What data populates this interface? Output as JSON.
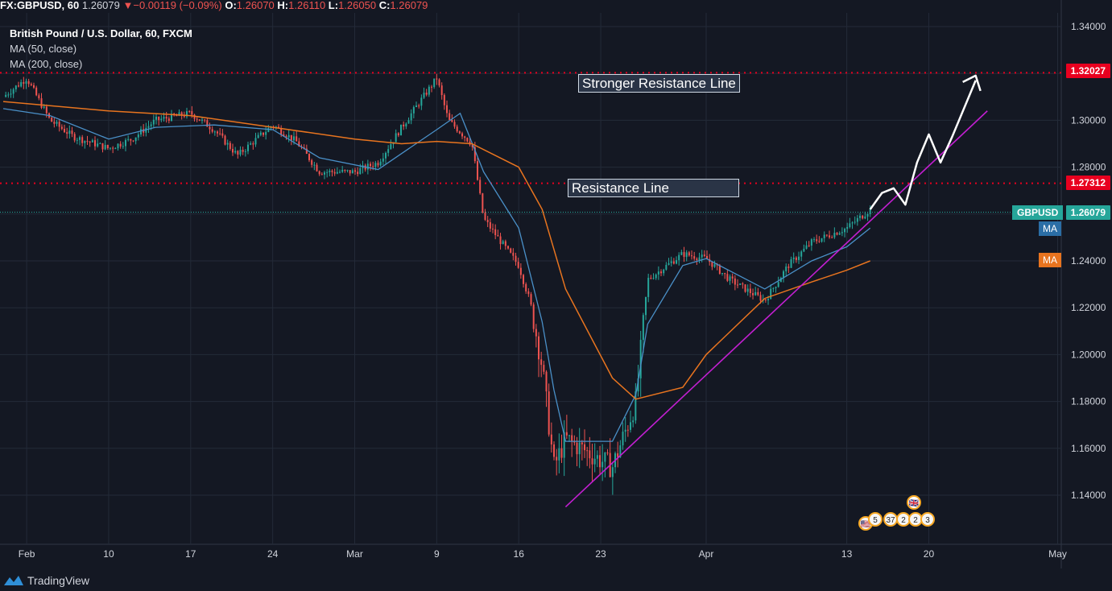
{
  "header": {
    "symbol": "FX:GBPUSD, 60",
    "last": "1.26079",
    "change_arrow": "▼",
    "change": "−0.00119 (−0.09%)",
    "o_label": "O:",
    "o_value": "1.26070",
    "h_label": "H:",
    "h_value": "1.26110",
    "l_label": "L:",
    "l_value": "1.26050",
    "c_label": "C:",
    "c_value": "1.26079"
  },
  "legend": {
    "title": "British Pound / U.S. Dollar, 60, FXCM",
    "ma1": "MA (50, close)",
    "ma2": "MA (200, close)"
  },
  "annotations": {
    "stronger_resistance": "Stronger Resistance Line",
    "resistance": "Resistance Line"
  },
  "price_tags": {
    "stronger_resistance_price": "1.32027",
    "resistance_price": "1.27312",
    "current_symbol": "GBPUSD",
    "current_price": "1.26079",
    "ma_fast_tag": "MA",
    "ma_slow_tag": "MA"
  },
  "events": {
    "e1": "5",
    "e2": "37",
    "e3": "2",
    "e4": "2",
    "e5": "3"
  },
  "brand": "TradingView",
  "colors": {
    "background": "#141823",
    "grid": "#232a38",
    "up": "#26a69a",
    "down": "#ef5350",
    "ma_fast": "#4a90c8",
    "ma_slow": "#e8741f",
    "trendline": "#c21fd1",
    "resistance": "#e8001f",
    "current_line": "#26a69a"
  },
  "chart_data": {
    "type": "line",
    "title": "British Pound / U.S. Dollar, 60, FXCM",
    "xlabel": "",
    "ylabel": "",
    "x_ticks": [
      "Feb",
      "10",
      "17",
      "24",
      "Mar",
      "9",
      "16",
      "23",
      "Apr",
      "13",
      "20",
      "May"
    ],
    "x_tick_dates": [
      "2020-02-03",
      "2020-02-10",
      "2020-02-17",
      "2020-02-24",
      "2020-03-02",
      "2020-03-09",
      "2020-03-16",
      "2020-03-23",
      "2020-04-01",
      "2020-04-13",
      "2020-04-20",
      "2020-05-01"
    ],
    "y_ticks": [
      "1.34000",
      "1.32000",
      "1.30000",
      "1.28000",
      "1.26000",
      "1.24000",
      "1.22000",
      "1.20000",
      "1.18000",
      "1.16000",
      "1.14000"
    ],
    "ylim": [
      1.128,
      1.342
    ],
    "xlim": [
      "2020-02-01",
      "2020-05-01"
    ],
    "grid": true,
    "legend_position": "top-left",
    "series": [
      {
        "name": "",
        "kind": "price",
        "x": [
          "2020-02-01",
          "2020-02-03",
          "2020-02-05",
          "2020-02-07",
          "2020-02-10",
          "2020-02-12",
          "2020-02-14",
          "2020-02-17",
          "2020-02-19",
          "2020-02-21",
          "2020-02-24",
          "2020-02-26",
          "2020-02-28",
          "2020-03-02",
          "2020-03-04",
          "2020-03-06",
          "2020-03-09",
          "2020-03-10",
          "2020-03-12",
          "2020-03-13",
          "2020-03-16",
          "2020-03-17",
          "2020-03-18",
          "2020-03-19",
          "2020-03-20",
          "2020-03-22",
          "2020-03-24",
          "2020-03-26",
          "2020-03-27",
          "2020-03-30",
          "2020-04-01",
          "2020-04-03",
          "2020-04-06",
          "2020-04-08",
          "2020-04-10",
          "2020-04-13",
          "2020-04-15"
        ],
        "y": [
          1.31,
          1.318,
          1.3,
          1.293,
          1.288,
          1.292,
          1.3,
          1.303,
          1.296,
          1.285,
          1.298,
          1.291,
          1.278,
          1.278,
          1.282,
          1.297,
          1.318,
          1.3,
          1.29,
          1.258,
          1.238,
          1.222,
          1.195,
          1.152,
          1.164,
          1.158,
          1.152,
          1.18,
          1.232,
          1.243,
          1.241,
          1.232,
          1.223,
          1.238,
          1.248,
          1.254,
          1.262
        ]
      },
      {
        "name": "MA (50, close)",
        "kind": "ma",
        "x": [
          "2020-02-01",
          "2020-02-05",
          "2020-02-10",
          "2020-02-14",
          "2020-02-19",
          "2020-02-24",
          "2020-02-28",
          "2020-03-04",
          "2020-03-09",
          "2020-03-11",
          "2020-03-13",
          "2020-03-16",
          "2020-03-18",
          "2020-03-19",
          "2020-03-20",
          "2020-03-24",
          "2020-03-26",
          "2020-03-27",
          "2020-03-30",
          "2020-04-01",
          "2020-04-06",
          "2020-04-10",
          "2020-04-13",
          "2020-04-15"
        ],
        "y": [
          1.305,
          1.302,
          1.292,
          1.297,
          1.298,
          1.296,
          1.284,
          1.279,
          1.296,
          1.303,
          1.278,
          1.254,
          1.214,
          1.185,
          1.163,
          1.163,
          1.183,
          1.213,
          1.238,
          1.241,
          1.228,
          1.24,
          1.246,
          1.254
        ]
      },
      {
        "name": "MA (200, close)",
        "kind": "ma",
        "x": [
          "2020-02-01",
          "2020-02-10",
          "2020-02-17",
          "2020-02-24",
          "2020-03-02",
          "2020-03-06",
          "2020-03-09",
          "2020-03-12",
          "2020-03-16",
          "2020-03-18",
          "2020-03-20",
          "2020-03-24",
          "2020-03-26",
          "2020-03-30",
          "2020-04-01",
          "2020-04-06",
          "2020-04-10",
          "2020-04-13",
          "2020-04-15"
        ],
        "y": [
          1.308,
          1.304,
          1.302,
          1.297,
          1.292,
          1.29,
          1.291,
          1.29,
          1.28,
          1.262,
          1.228,
          1.19,
          1.181,
          1.186,
          1.2,
          1.224,
          1.231,
          1.236,
          1.24
        ]
      }
    ],
    "horizontal_lines": [
      {
        "name": "Stronger Resistance Line",
        "y": 1.32027,
        "style": "dotted"
      },
      {
        "name": "Resistance Line",
        "y": 1.27312,
        "style": "dotted"
      },
      {
        "name": "GBPUSD",
        "y": 1.26079,
        "style": "dotted"
      }
    ],
    "trendline": {
      "x": [
        "2020-03-20",
        "2020-04-25"
      ],
      "y": [
        1.135,
        1.304
      ]
    },
    "projection": {
      "x": [
        "2020-04-15",
        "2020-04-16",
        "2020-04-17",
        "2020-04-18",
        "2020-04-19",
        "2020-04-20",
        "2020-04-21",
        "2020-04-22",
        "2020-04-24"
      ],
      "y": [
        1.262,
        1.269,
        1.271,
        1.264,
        1.282,
        1.294,
        1.282,
        1.293,
        1.317
      ]
    }
  }
}
